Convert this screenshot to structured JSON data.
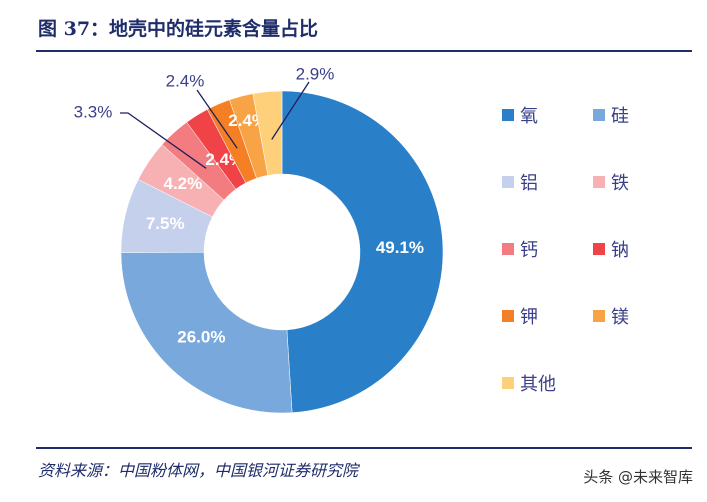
{
  "title": "图 37：地壳中的硅元素含量占比",
  "source": "资料来源：中国粉体网，中国银河证券研究院",
  "watermark": "头条 @未来智库",
  "chart_data": {
    "type": "donut",
    "title": "图 37：地壳中的硅元素含量占比",
    "categories": [
      "氧",
      "硅",
      "铝",
      "铁",
      "钙",
      "钠",
      "钾",
      "镁",
      "其他"
    ],
    "values": [
      49.1,
      26.0,
      7.5,
      4.2,
      3.3,
      2.4,
      2.4,
      2.4,
      2.9
    ],
    "labels": [
      "49.1%",
      "26.0%",
      "7.5%",
      "4.2%",
      "3.3%",
      "2.4%",
      "2.4%",
      "2.4%",
      "2.9%"
    ],
    "colors": [
      "#2a7fc9",
      "#79a9dc",
      "#c5d0ed",
      "#f8b1b3",
      "#f27c7f",
      "#ef4347",
      "#f57f25",
      "#f8a346",
      "#fed07a"
    ],
    "legend_position": "right"
  }
}
